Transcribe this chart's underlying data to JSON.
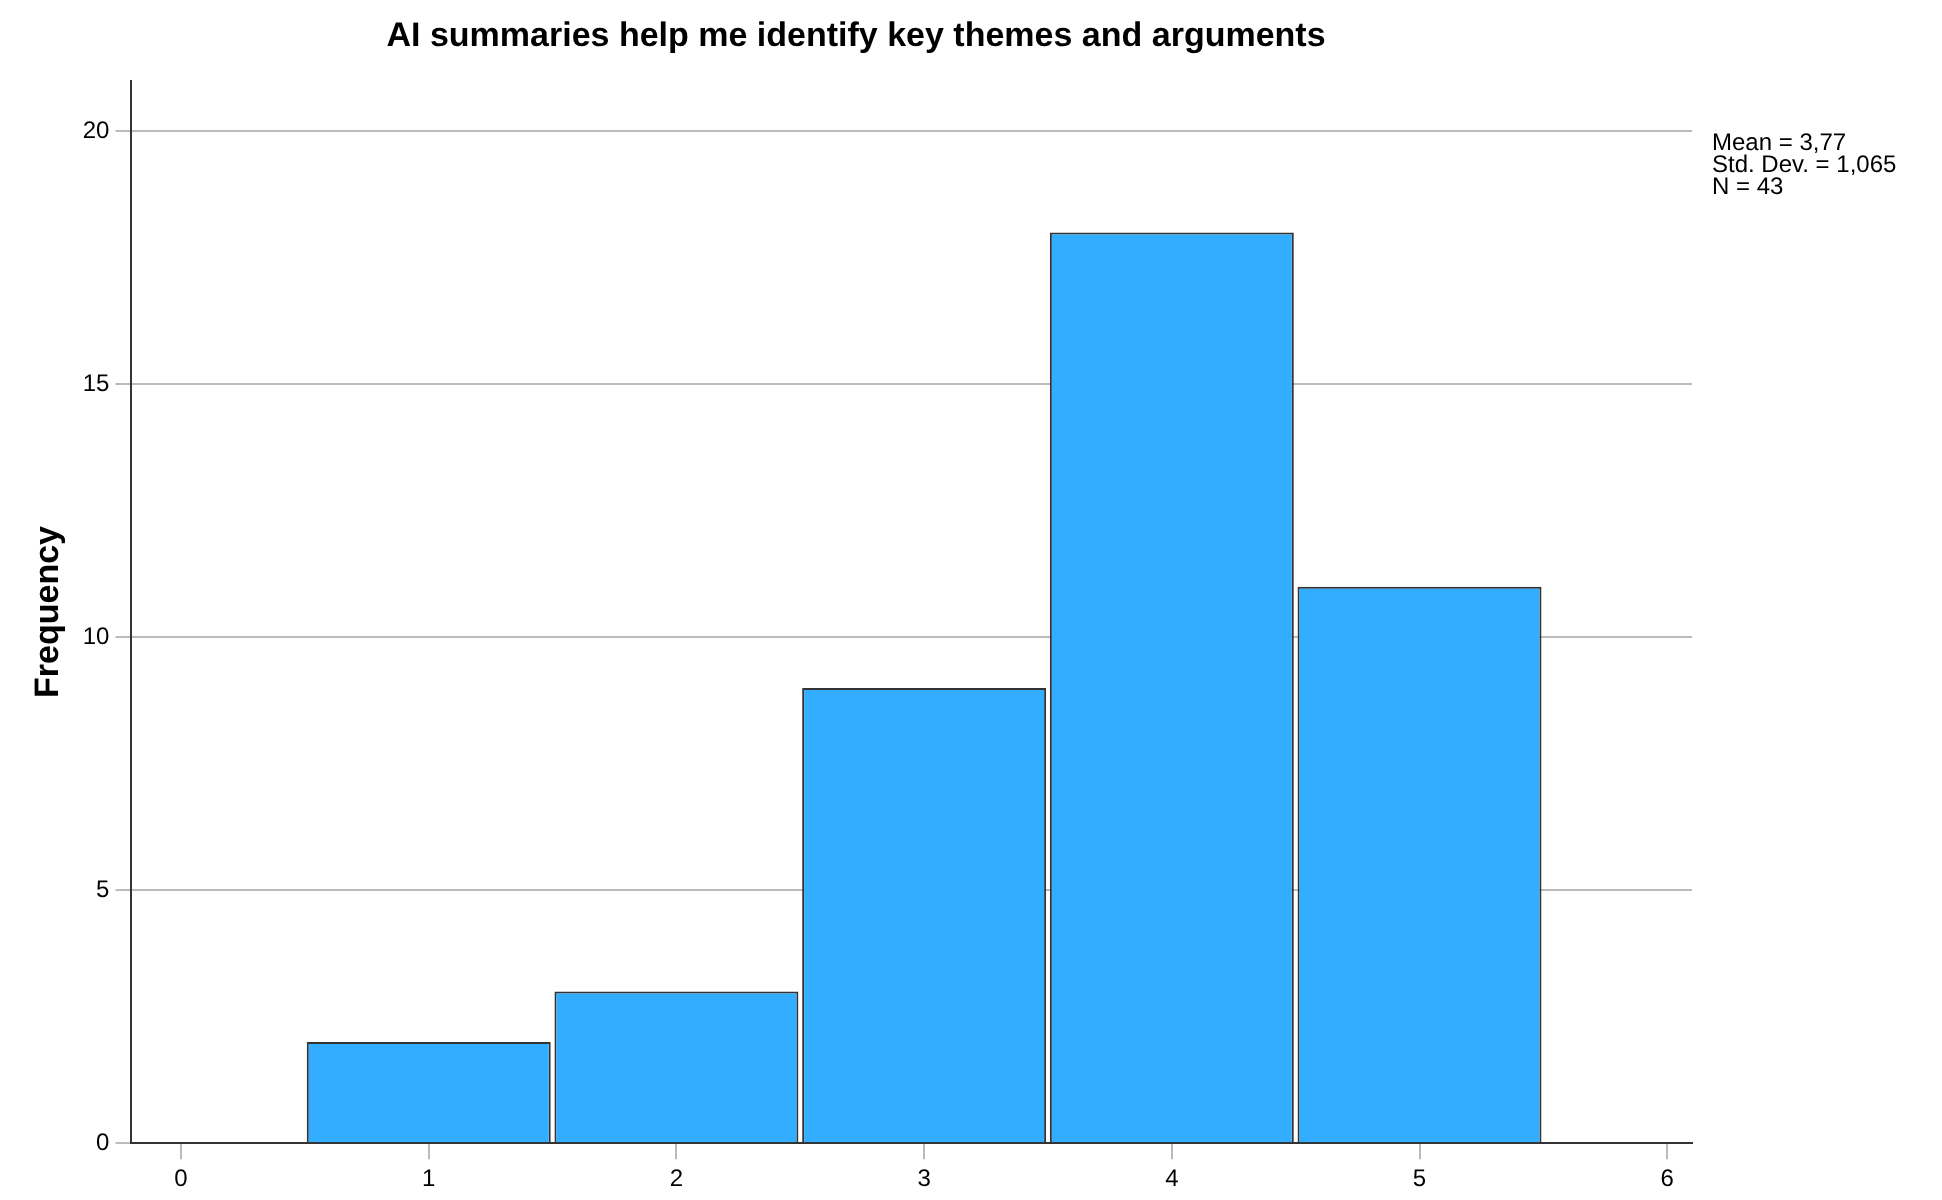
{
  "chart_data": {
    "type": "histogram",
    "title": "AI summaries help me identify key themes and arguments",
    "ylabel": "Frequency",
    "bins": [
      0.5,
      1.5,
      2.5,
      3.5,
      4.5,
      5.5
    ],
    "values": [
      2,
      3,
      9,
      18,
      11
    ],
    "color": "#33adff",
    "xlim": [
      -0.2,
      6.1
    ],
    "xticks": [
      0,
      1,
      2,
      3,
      4,
      5,
      6
    ],
    "ylim": [
      0,
      21
    ],
    "yticks": [
      0,
      5,
      10,
      15,
      20
    ],
    "grid": "y",
    "legend": false,
    "annotations": [
      "Mean = 3,77",
      "Std. Dev. = 1,065",
      "N = 43"
    ]
  }
}
